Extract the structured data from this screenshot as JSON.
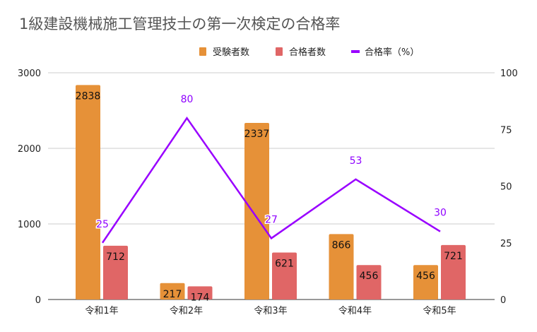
{
  "chart_data": {
    "type": "bar+line",
    "title": "1級建設機械施工管理技士の第一次検定の合格率",
    "categories": [
      "令和1年",
      "令和2年",
      "令和3年",
      "令和4年",
      "令和5年"
    ],
    "series": [
      {
        "name": "受験者数",
        "type": "bar",
        "axis": "left",
        "color": "#e69138",
        "values": [
          2838,
          217,
          2337,
          866,
          456
        ]
      },
      {
        "name": "合格者数",
        "type": "bar",
        "axis": "left",
        "color": "#e06666",
        "values": [
          712,
          174,
          621,
          456,
          721
        ]
      },
      {
        "name": "合格率（%）",
        "type": "line",
        "axis": "right",
        "color": "#9900ff",
        "values": [
          25,
          80,
          27,
          53,
          30
        ]
      }
    ],
    "left_axis": {
      "min": 0,
      "max": 3000,
      "ticks": [
        "0",
        "1000",
        "2000",
        "3000"
      ]
    },
    "right_axis": {
      "min": 0,
      "max": 100,
      "ticks": [
        "0",
        "25",
        "50",
        "75",
        "100"
      ]
    },
    "legend": "top-center",
    "grid": true
  }
}
